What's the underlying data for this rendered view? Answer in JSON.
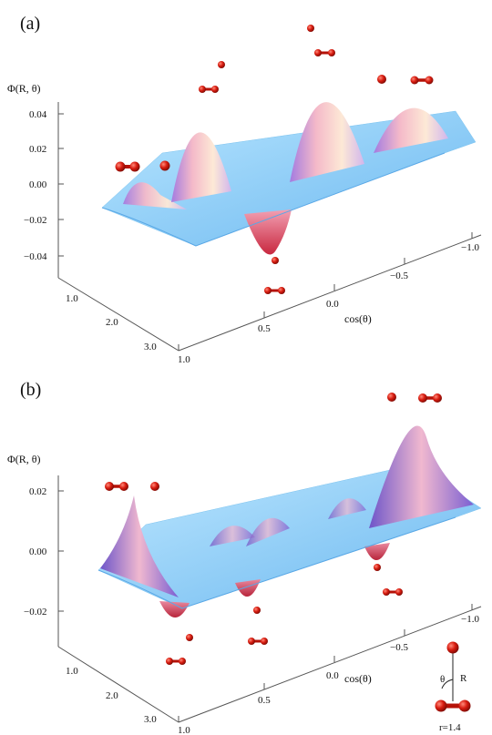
{
  "panels": [
    {
      "label": "(a)",
      "zlabel": "Φ(R, θ)",
      "xlabel": "cos(θ)",
      "zticks": [
        "0.04",
        "0.02",
        "0.00",
        "−0.02",
        "−0.04"
      ],
      "rticks": [
        "1.0",
        "2.0",
        "3.0"
      ],
      "cticks": [
        "1.0",
        "0.5",
        "0.0",
        "−0.5",
        "−1.0"
      ]
    },
    {
      "label": "(b)",
      "zlabel": "Φ(R, θ)",
      "xlabel": "cos(θ)",
      "zticks": [
        "0.02",
        "0.00",
        "−0.02"
      ],
      "rticks": [
        "1.0",
        "2.0",
        "3.0"
      ],
      "cticks": [
        "1.0",
        "0.5",
        "0.0",
        "−0.5",
        "−1.0"
      ]
    }
  ],
  "inset": {
    "theta": "θ",
    "R": "R",
    "r": "r=1.4"
  },
  "colors": {
    "surface_base": "#8fd0f5",
    "surface_peak": "#f3b8c6",
    "surface_violet": "#8a6ed8",
    "surface_negative": "#d94558",
    "molecule": "#d81c10"
  }
}
